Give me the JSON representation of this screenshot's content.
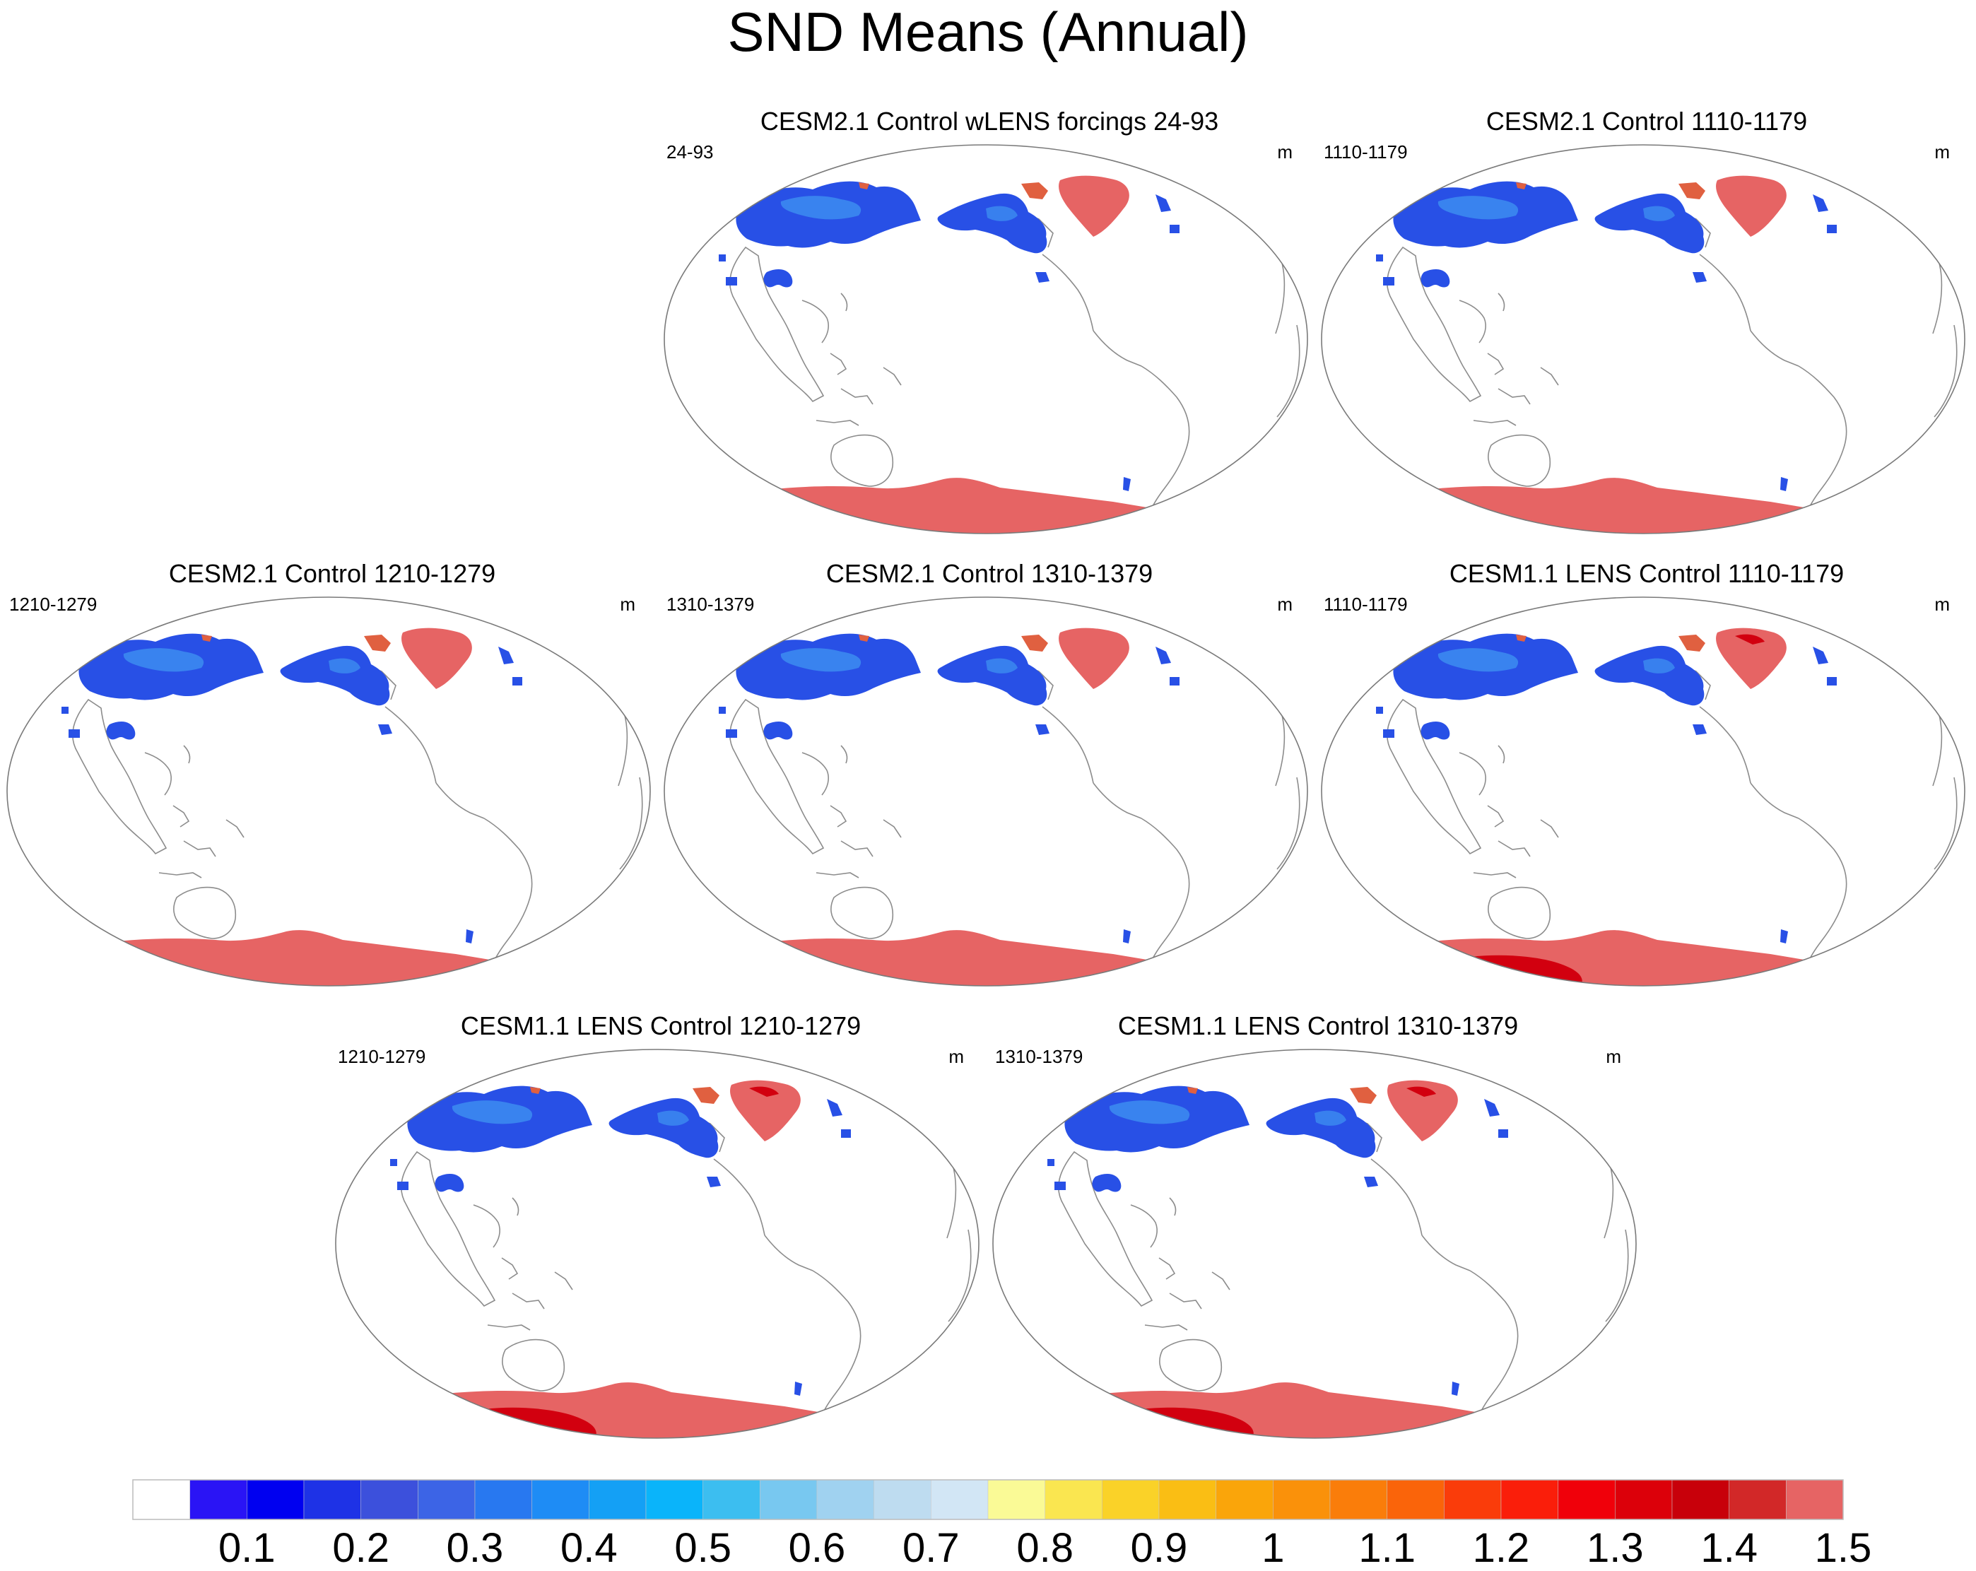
{
  "figure": {
    "title": "SND Means (Annual)",
    "units": "m",
    "panels": [
      {
        "id": "p1",
        "title": "CESM2.1 Control wLENS forcings 24-93",
        "left_label": "24-93",
        "right_label": "m",
        "variant": "cesm2"
      },
      {
        "id": "p2",
        "title": "CESM2.1 Control 1110-1179",
        "left_label": "1110-1179",
        "right_label": "m",
        "variant": "cesm2"
      },
      {
        "id": "p3",
        "title": "CESM2.1 Control 1210-1279",
        "left_label": "1210-1279",
        "right_label": "m",
        "variant": "cesm2"
      },
      {
        "id": "p4",
        "title": "CESM2.1 Control 1310-1379",
        "left_label": "1310-1379",
        "right_label": "m",
        "variant": "cesm2"
      },
      {
        "id": "p5",
        "title": "CESM1.1 LENS Control 1110-1179",
        "left_label": "1110-1179",
        "right_label": "m",
        "variant": "cesm1"
      },
      {
        "id": "p6",
        "title": "CESM1.1 LENS Control 1210-1279",
        "left_label": "1210-1279",
        "right_label": "m",
        "variant": "cesm1"
      },
      {
        "id": "p7",
        "title": "CESM1.1 LENS Control 1310-1379",
        "left_label": "1310-1379",
        "right_label": "m",
        "variant": "cesm1"
      }
    ],
    "colorbar": {
      "labels": [
        "0.1",
        "0.2",
        "0.3",
        "0.4",
        "0.5",
        "0.6",
        "0.7",
        "0.8",
        "0.9",
        "1",
        "1.1",
        "1.2",
        "1.3",
        "1.4",
        "1.5"
      ],
      "colors": [
        "#ffffff",
        "#2a14f5",
        "#0000f0",
        "#1e32e6",
        "#3c50dc",
        "#3c64e6",
        "#2878f0",
        "#1e8cf5",
        "#14a0f5",
        "#0ab4fa",
        "#3cbef0",
        "#78c8f0",
        "#a0d2f0",
        "#bedcf0",
        "#d2e6f5",
        "#fafa96",
        "#fae650",
        "#fad228",
        "#fabe14",
        "#faa50a",
        "#fa910a",
        "#fa7d0a",
        "#fa640a",
        "#fa3c0a",
        "#fa1e0a",
        "#f0000a",
        "#dc000a",
        "#c8000a",
        "#d22828",
        "#e66464"
      ]
    },
    "palette": {
      "antarctica": "#e66464",
      "greenland": "#e66464",
      "deep_red": "#d2000f",
      "snow_blue": "#2850e6",
      "snow_light": "#3c8cf0",
      "coast": "#8c8c8c",
      "outline": "#7a7a7a"
    }
  }
}
